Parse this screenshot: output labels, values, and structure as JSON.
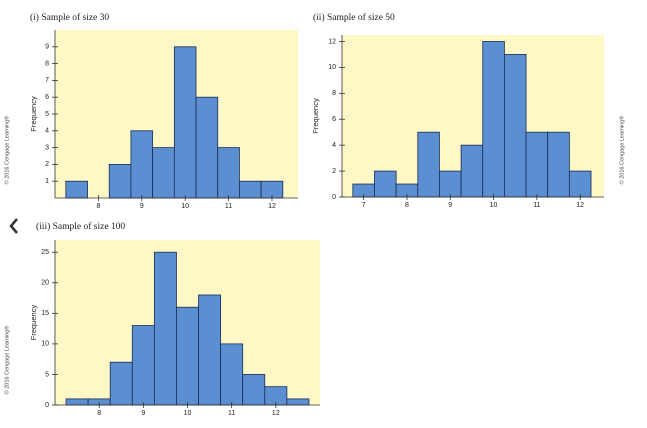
{
  "chart_data": [
    {
      "type": "histogram",
      "title": "(i) Sample of size 30",
      "ylabel": "Frequency",
      "credit": "© 2016 Cengage Learning®",
      "bins": [
        7.25,
        7.75,
        8.25,
        8.75,
        9.25,
        9.75,
        10.25,
        10.75,
        11.25,
        11.75,
        12.25
      ],
      "values": [
        1,
        0,
        2,
        4,
        3,
        9,
        6,
        3,
        1,
        1
      ],
      "color": "#5b8fd2",
      "xlim": [
        7,
        12.6
      ],
      "xticks": [
        8,
        9,
        10,
        11,
        12
      ],
      "ylim": [
        0,
        10
      ],
      "yticks": [
        1,
        2,
        3,
        4,
        5,
        6,
        7,
        8,
        9
      ]
    },
    {
      "type": "histogram",
      "title": "(ii) Sample of size 50",
      "ylabel": "Frequency",
      "credit": "© 2016 Cengage Learning®",
      "bins": [
        6.75,
        7.25,
        7.75,
        8.25,
        8.75,
        9.25,
        9.75,
        10.25,
        10.75,
        11.25,
        11.75,
        12.25
      ],
      "values": [
        1,
        2,
        1,
        5,
        2,
        4,
        12,
        11,
        5,
        5,
        2
      ],
      "color": "#5b8fd2",
      "xlim": [
        6.5,
        12.55
      ],
      "xticks": [
        7,
        8,
        9,
        10,
        11,
        12
      ],
      "ylim": [
        0,
        12.5
      ],
      "yticks": [
        0,
        2,
        4,
        6,
        8,
        10,
        12
      ]
    },
    {
      "type": "histogram",
      "title": "(iii) Sample of size 100",
      "ylabel": "Frequency",
      "credit": "© 2016 Cengage Learning®",
      "bins": [
        7.25,
        7.75,
        8.25,
        8.75,
        9.25,
        9.75,
        10.25,
        10.75,
        11.25,
        11.75,
        12.25,
        12.75
      ],
      "values": [
        1,
        1,
        7,
        13,
        25,
        16,
        18,
        10,
        5,
        3,
        1
      ],
      "color": "#5b8fd2",
      "xlim": [
        7,
        13
      ],
      "xticks": [
        8,
        9,
        10,
        11,
        12
      ],
      "ylim": [
        0,
        27
      ],
      "yticks": [
        0,
        5,
        10,
        15,
        20,
        25
      ]
    }
  ]
}
